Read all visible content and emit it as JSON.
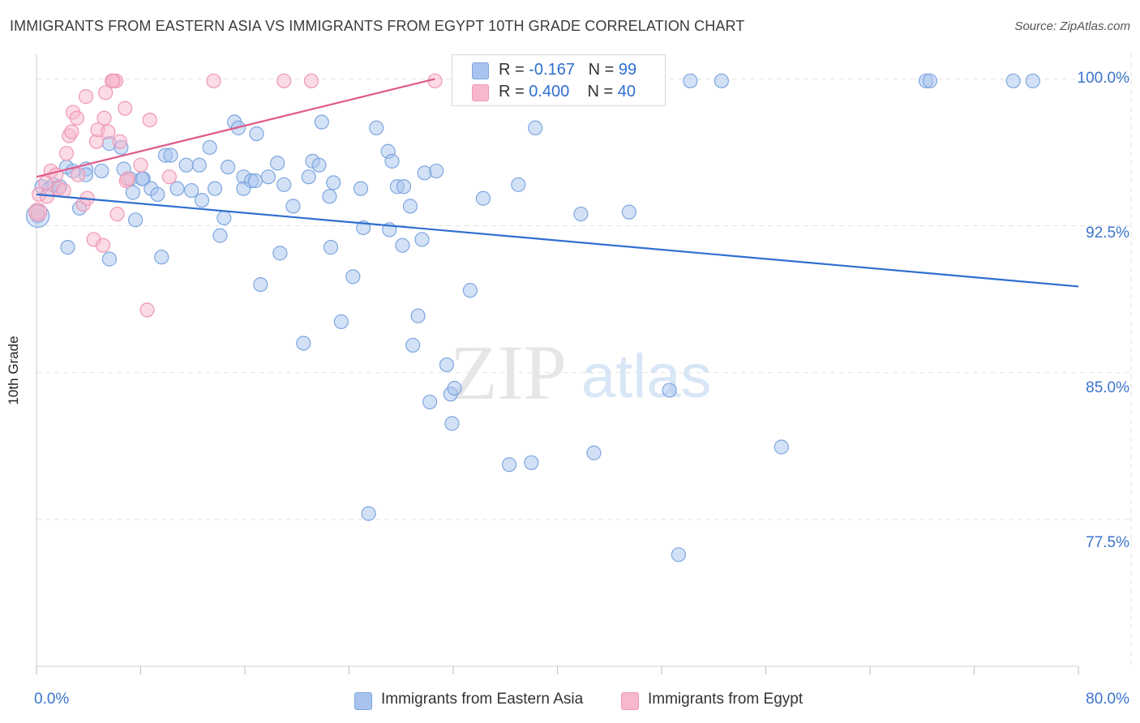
{
  "title": "IMMIGRANTS FROM EASTERN ASIA VS IMMIGRANTS FROM EGYPT 10TH GRADE CORRELATION CHART",
  "source": "Source: ZipAtlas.com",
  "watermark": {
    "zip": "ZIP",
    "atlas": "atlas"
  },
  "legend": {
    "rows": [
      {
        "r_label": "R = ",
        "r_value": "-0.167",
        "n_label": "N = ",
        "n_value": "99"
      },
      {
        "r_label": "R = ",
        "r_value": "0.400",
        "n_label": "N = ",
        "n_value": "40"
      }
    ]
  },
  "bottom_legend": [
    "Immigrants from Eastern Asia",
    "Immigrants from Egypt"
  ],
  "colors": {
    "blue_fill": "#a8c4ee",
    "blue_stroke": "#7ea6e0",
    "blue_line": "#2f6fd0",
    "pink_fill": "#f7b8cc",
    "pink_stroke": "#ef97b4",
    "pink_line": "#e05a8a",
    "tick_text": "#3b74cc",
    "grid": "#e2e2e2"
  },
  "chart_data": {
    "type": "scatter",
    "title": "IMMIGRANTS FROM EASTERN ASIA VS IMMIGRANTS FROM EGYPT 10TH GRADE CORRELATION CHART",
    "xlabel": "",
    "ylabel": "10th Grade",
    "xlim": [
      0,
      80
    ],
    "ylim": [
      70.0,
      101.3
    ],
    "x_tick_labels": [
      "0.0%",
      "80.0%"
    ],
    "y_ticks": [
      77.5,
      85.0,
      92.5,
      100.0
    ],
    "y_tick_labels": [
      "77.5%",
      "85.0%",
      "92.5%",
      "100.0%"
    ],
    "grid": true,
    "legend_position": "top-center",
    "series": [
      {
        "name": "Immigrants from Eastern Asia",
        "color": "#a8c4ee",
        "trend": {
          "x": [
            0,
            80
          ],
          "y": [
            94.1,
            89.4
          ]
        },
        "points": [
          [
            0.1,
            93.0
          ],
          [
            0.4,
            94.5
          ],
          [
            1.0,
            94.4
          ],
          [
            1.3,
            94.6
          ],
          [
            1.8,
            94.5
          ],
          [
            2.3,
            95.5
          ],
          [
            2.8,
            95.3
          ],
          [
            3.8,
            95.4
          ],
          [
            3.8,
            95.1
          ],
          [
            5.0,
            95.3
          ],
          [
            3.3,
            93.4
          ],
          [
            2.4,
            91.4
          ],
          [
            5.6,
            96.7
          ],
          [
            6.7,
            95.4
          ],
          [
            6.5,
            96.5
          ],
          [
            5.6,
            90.8
          ],
          [
            7.2,
            94.9
          ],
          [
            7.4,
            94.2
          ],
          [
            7.6,
            92.8
          ],
          [
            8.2,
            94.9
          ],
          [
            8.1,
            94.9
          ],
          [
            8.8,
            94.4
          ],
          [
            9.3,
            94.1
          ],
          [
            9.6,
            90.9
          ],
          [
            9.9,
            96.1
          ],
          [
            10.3,
            96.1
          ],
          [
            10.8,
            94.4
          ],
          [
            11.5,
            95.6
          ],
          [
            11.9,
            94.3
          ],
          [
            12.5,
            95.6
          ],
          [
            12.7,
            93.8
          ],
          [
            13.3,
            96.5
          ],
          [
            13.7,
            94.4
          ],
          [
            14.1,
            92.0
          ],
          [
            14.4,
            92.9
          ],
          [
            14.7,
            95.5
          ],
          [
            15.2,
            97.8
          ],
          [
            15.5,
            97.5
          ],
          [
            15.9,
            95.0
          ],
          [
            15.9,
            94.4
          ],
          [
            16.5,
            94.8
          ],
          [
            16.8,
            94.8
          ],
          [
            16.9,
            97.2
          ],
          [
            17.2,
            89.5
          ],
          [
            17.8,
            95.0
          ],
          [
            18.5,
            95.7
          ],
          [
            18.7,
            91.1
          ],
          [
            19.0,
            94.6
          ],
          [
            19.7,
            93.5
          ],
          [
            20.9,
            95.0
          ],
          [
            21.2,
            95.8
          ],
          [
            21.7,
            95.6
          ],
          [
            20.5,
            86.5
          ],
          [
            21.9,
            97.8
          ],
          [
            22.5,
            94.0
          ],
          [
            22.6,
            91.4
          ],
          [
            22.8,
            94.7
          ],
          [
            23.4,
            87.6
          ],
          [
            24.3,
            89.9
          ],
          [
            24.9,
            94.4
          ],
          [
            25.1,
            92.4
          ],
          [
            25.5,
            77.8
          ],
          [
            26.1,
            97.5
          ],
          [
            27.0,
            96.3
          ],
          [
            27.3,
            95.8
          ],
          [
            27.1,
            92.3
          ],
          [
            27.7,
            94.5
          ],
          [
            28.2,
            94.5
          ],
          [
            28.1,
            91.5
          ],
          [
            28.7,
            93.5
          ],
          [
            28.9,
            86.4
          ],
          [
            29.3,
            87.9
          ],
          [
            29.6,
            91.8
          ],
          [
            29.8,
            95.2
          ],
          [
            30.2,
            83.5
          ],
          [
            30.7,
            95.3
          ],
          [
            31.5,
            85.4
          ],
          [
            31.8,
            83.9
          ],
          [
            32.1,
            84.2
          ],
          [
            31.9,
            82.4
          ],
          [
            33.3,
            89.2
          ],
          [
            34.3,
            93.9
          ],
          [
            36.3,
            80.3
          ],
          [
            37.0,
            94.6
          ],
          [
            38.0,
            80.4
          ],
          [
            38.3,
            97.5
          ],
          [
            41.8,
            93.1
          ],
          [
            42.8,
            80.9
          ],
          [
            43.0,
            99.7
          ],
          [
            45.5,
            93.2
          ],
          [
            48.6,
            84.1
          ],
          [
            49.3,
            75.7
          ],
          [
            50.2,
            99.9
          ],
          [
            52.6,
            99.9
          ],
          [
            57.2,
            81.2
          ],
          [
            68.3,
            99.9
          ],
          [
            68.6,
            99.9
          ],
          [
            75.0,
            99.9
          ],
          [
            76.5,
            99.9
          ]
        ]
      },
      {
        "name": "Immigrants from Egypt",
        "color": "#f7b8cc",
        "trend": {
          "x": [
            0,
            30.6
          ],
          "y": [
            95.0,
            100.0
          ]
        },
        "points": [
          [
            0.2,
            94.1
          ],
          [
            0.1,
            93.2
          ],
          [
            0.7,
            94.7
          ],
          [
            0.8,
            94.0
          ],
          [
            1.1,
            95.3
          ],
          [
            1.5,
            95.1
          ],
          [
            1.7,
            94.4
          ],
          [
            2.1,
            94.3
          ],
          [
            2.3,
            96.2
          ],
          [
            2.5,
            97.1
          ],
          [
            2.7,
            97.3
          ],
          [
            2.8,
            98.3
          ],
          [
            3.1,
            98.0
          ],
          [
            3.2,
            95.1
          ],
          [
            3.6,
            93.6
          ],
          [
            3.8,
            99.1
          ],
          [
            3.9,
            93.9
          ],
          [
            4.4,
            91.8
          ],
          [
            4.6,
            96.8
          ],
          [
            4.7,
            97.4
          ],
          [
            5.1,
            91.5
          ],
          [
            5.2,
            98.0
          ],
          [
            5.3,
            99.3
          ],
          [
            5.5,
            97.3
          ],
          [
            5.8,
            99.9
          ],
          [
            6.1,
            99.9
          ],
          [
            5.9,
            99.9
          ],
          [
            6.2,
            93.1
          ],
          [
            6.4,
            96.8
          ],
          [
            6.8,
            98.5
          ],
          [
            6.9,
            94.8
          ],
          [
            7.0,
            94.9
          ],
          [
            8.0,
            95.6
          ],
          [
            8.5,
            88.2
          ],
          [
            8.7,
            97.9
          ],
          [
            10.2,
            95.0
          ],
          [
            13.6,
            99.9
          ],
          [
            19.0,
            99.9
          ],
          [
            21.1,
            99.9
          ],
          [
            30.6,
            99.9
          ]
        ]
      }
    ]
  }
}
